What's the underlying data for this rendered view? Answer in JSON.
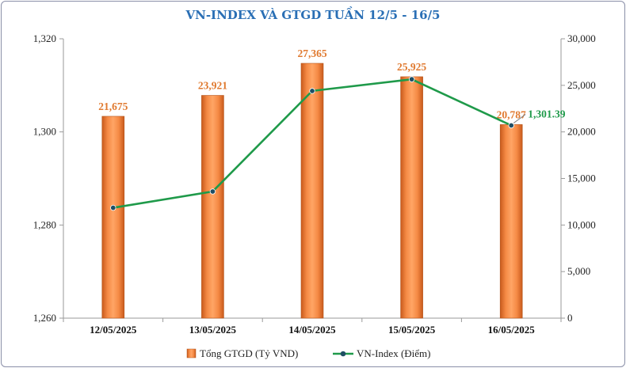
{
  "chart_data": {
    "type": "bar",
    "title": "VN-INDEX VÀ GTGD TUẦN 12/5 - 16/5",
    "categories": [
      "12/05/2025",
      "13/05/2025",
      "14/05/2025",
      "15/05/2025",
      "16/05/2025"
    ],
    "series": [
      {
        "name": "Tổng GTGD (Tỷ VND)",
        "type": "bar",
        "axis": "right",
        "color": "#f07a35",
        "values": [
          21675,
          23921,
          27365,
          25925,
          20787
        ],
        "labels": [
          "21,675",
          "23,921",
          "27,365",
          "25,925",
          "20,787"
        ]
      },
      {
        "name": "VN-Index (Điểm)",
        "type": "line",
        "axis": "left",
        "color": "#1f9a4a",
        "values": [
          1283.7,
          1287.2,
          1308.8,
          1311.3,
          1301.39
        ],
        "last_label": "1,301.39"
      }
    ],
    "y_left": {
      "min": 1260,
      "max": 1320,
      "ticks": [
        "1,260",
        "1,280",
        "1,300",
        "1,320"
      ],
      "tick_values": [
        1260,
        1280,
        1300,
        1320
      ]
    },
    "y_right": {
      "min": 0,
      "max": 30000,
      "ticks": [
        "0",
        "5,000",
        "10,000",
        "15,000",
        "20,000",
        "25,000",
        "30,000"
      ],
      "tick_values": [
        0,
        5000,
        10000,
        15000,
        20000,
        25000,
        30000
      ]
    },
    "legend_position": "bottom",
    "grid": false
  }
}
